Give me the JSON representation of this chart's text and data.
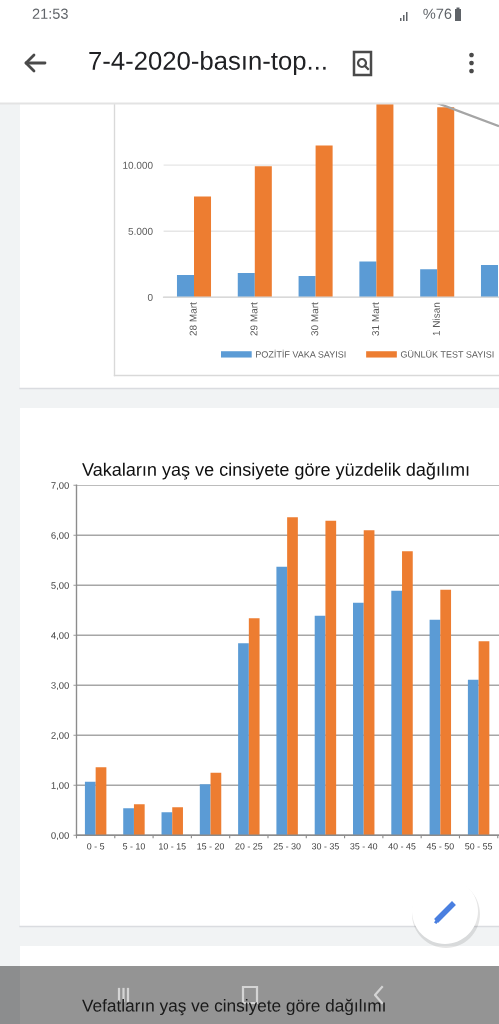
{
  "chart_data": [
    {
      "type": "other",
      "title": "7-4-2020-basın-top...",
      "annotations": [
        "21:53",
        "%76"
      ]
    },
    {
      "type": "bar",
      "categories": [
        "28 Mart",
        "29 Mart",
        "30 Mart",
        "31 Mart",
        "1 Nisan",
        null
      ],
      "series": [
        {
          "name": "POZİTİF VAKA SAYISI",
          "color": "#5b9bd5",
          "values": [
            1690,
            1840,
            1620,
            2700,
            2120,
            2450
          ]
        },
        {
          "name": "GÜNLÜK TEST SAYISI",
          "color": "#ed7d31",
          "values": [
            7630,
            9920,
            11490,
            14700,
            14370,
            null
          ]
        },
        {
          "type": "line",
          "color": "#a5a5a5",
          "values": [
            null,
            null,
            null,
            null,
            14700,
            12980
          ]
        }
      ],
      "ylim": [
        0,
        14700
      ],
      "yticks": [
        0,
        {
          "value": 5000,
          "label": "5.000"
        },
        {
          "value": 10000,
          "label": "10.000"
        }
      ],
      "grid": "y",
      "legend": "bottom"
    },
    {
      "type": "bar",
      "title": "Vakaların yaş ve cinsiyete göre yüzdelik dağılımı",
      "categories": [
        "0 - 5",
        "5 - 10",
        "10 - 15",
        "15 - 20",
        "20 - 25",
        "25 - 30",
        "30 - 35",
        "35 - 40",
        "40 - 45",
        "45 - 50",
        "50 - 55"
      ],
      "series": [
        {
          "color": "#5b9bd5",
          "values": [
            1.07,
            0.54,
            0.46,
            1.02,
            3.84,
            5.37,
            4.39,
            4.65,
            4.89,
            4.31,
            3.11
          ]
        },
        {
          "color": "#ed7d31",
          "values": [
            1.36,
            0.62,
            0.56,
            1.25,
            4.34,
            6.36,
            6.29,
            6.1,
            5.68,
            4.91,
            3.88
          ]
        }
      ],
      "ylim": [
        0,
        7
      ],
      "yticks": [
        {
          "value": 0,
          "label": "0,00"
        },
        {
          "value": 1,
          "label": "1,00"
        },
        {
          "value": 2,
          "label": "2,00"
        },
        {
          "value": 3,
          "label": "3,00"
        },
        {
          "value": 4,
          "label": "4,00"
        },
        {
          "value": 5,
          "label": "5,00"
        },
        {
          "value": 6,
          "label": "6,00"
        },
        {
          "value": 7,
          "label": "7,00"
        }
      ],
      "grid": "y"
    },
    {
      "type": "other",
      "title": "Vefatların yaş ve cinsiyete göre dağılımı"
    }
  ]
}
